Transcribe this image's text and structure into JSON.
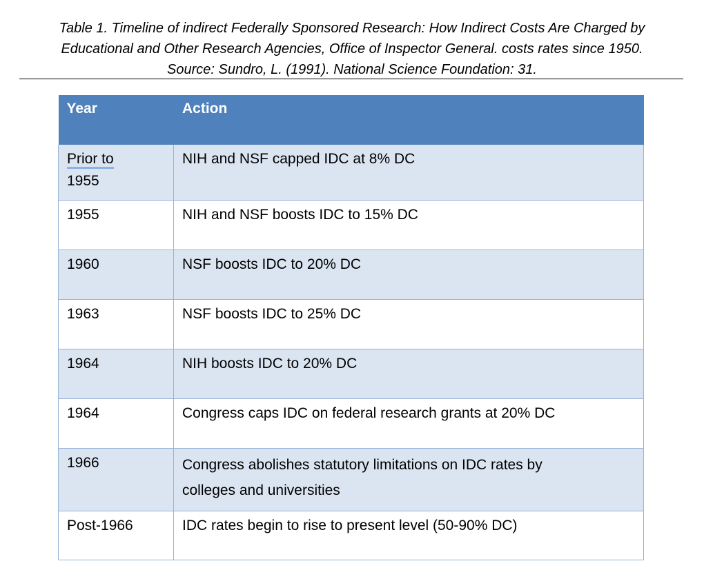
{
  "caption": {
    "line1": "Table 1. Timeline of indirect Federally Sponsored Research: How Indirect Costs Are Charged by",
    "line2": "Educational and Other Research Agencies, Office of Inspector General. costs rates since 1950.",
    "line3": "Source: Sundro, L. (1991). National Science Foundation: 31."
  },
  "table": {
    "headers": [
      "Year",
      "Action"
    ],
    "rows": [
      {
        "year_part1": "Prior to",
        "year_part2": "1955",
        "action": "NIH and NSF capped IDC at 8% DC"
      },
      {
        "year": "1955",
        "action": "NIH and NSF boosts IDC to 15% DC"
      },
      {
        "year": "1960",
        "action": "NSF boosts IDC to 20% DC"
      },
      {
        "year": "1963",
        "action": "NSF boosts IDC to 25% DC"
      },
      {
        "year": "1964",
        "action": "NIH boosts IDC to 20% DC"
      },
      {
        "year": "1964",
        "action": "Congress caps IDC on federal research grants at 20% DC"
      },
      {
        "year": "1966",
        "action_line1": "Congress abolishes statutory limitations on IDC rates by",
        "action_line2": "colleges and universities"
      },
      {
        "year": "Post-1966",
        "action": "IDC rates begin to rise to present level (50-90% DC)"
      }
    ]
  },
  "colors": {
    "header_bg": "#4f81bd",
    "band_bg": "#dbe5f1",
    "border": "#95b3d7"
  }
}
